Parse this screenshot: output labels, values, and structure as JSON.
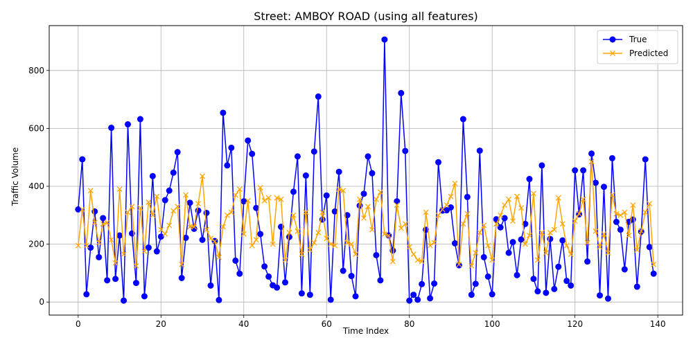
{
  "chart_data": {
    "type": "line",
    "title": "Street: AMBOY ROAD (using all features)",
    "xlabel": "Time Index",
    "ylabel": "Traffic Volume",
    "xlim": [
      -7,
      146
    ],
    "ylim": [
      -45,
      955
    ],
    "xticks": [
      0,
      20,
      40,
      60,
      80,
      100,
      120,
      140
    ],
    "yticks": [
      0,
      200,
      400,
      600,
      800
    ],
    "grid": true,
    "legend_position": "top-right",
    "x": [
      0,
      1,
      2,
      3,
      4,
      5,
      6,
      7,
      8,
      9,
      10,
      11,
      12,
      13,
      14,
      15,
      16,
      17,
      18,
      19,
      20,
      21,
      22,
      23,
      24,
      25,
      26,
      27,
      28,
      29,
      30,
      31,
      32,
      33,
      34,
      35,
      36,
      37,
      38,
      39,
      40,
      41,
      42,
      43,
      44,
      45,
      46,
      47,
      48,
      49,
      50,
      51,
      52,
      53,
      54,
      55,
      56,
      57,
      58,
      59,
      60,
      61,
      62,
      63,
      64,
      65,
      66,
      67,
      68,
      69,
      70,
      71,
      72,
      73,
      74,
      75,
      76,
      77,
      78,
      79,
      80,
      81,
      82,
      83,
      84,
      85,
      86,
      87,
      88,
      89,
      90,
      91,
      92,
      93,
      94,
      95,
      96,
      97,
      98,
      99,
      100,
      101,
      102,
      103,
      104,
      105,
      106,
      107,
      108,
      109,
      110,
      111,
      112,
      113,
      114,
      115,
      116,
      117,
      118,
      119,
      120,
      121,
      122,
      123,
      124,
      125,
      126,
      127,
      128,
      129,
      130,
      131,
      132,
      133,
      134,
      135,
      136,
      137,
      138,
      139
    ],
    "series": [
      {
        "name": "True",
        "color": "#0000ff",
        "marker": "circle",
        "values": [
          320,
          493,
          27,
          188,
          313,
          155,
          290,
          75,
          602,
          80,
          230,
          5,
          614,
          237,
          66,
          632,
          20,
          188,
          435,
          175,
          226,
          352,
          385,
          447,
          518,
          83,
          222,
          343,
          253,
          316,
          215,
          308,
          57,
          211,
          7,
          654,
          472,
          533,
          143,
          98,
          348,
          558,
          512,
          325,
          235,
          123,
          88,
          58,
          50,
          260,
          68,
          225,
          381,
          503,
          30,
          437,
          25,
          520,
          710,
          285,
          368,
          8,
          313,
          450,
          108,
          300,
          90,
          20,
          333,
          374,
          503,
          445,
          162,
          75,
          907,
          230,
          178,
          348,
          722,
          522,
          5,
          25,
          8,
          62,
          250,
          13,
          64,
          483,
          316,
          317,
          327,
          203,
          127,
          632,
          363,
          25,
          63,
          523,
          155,
          88,
          27,
          286,
          258,
          290,
          170,
          207,
          93,
          216,
          270,
          425,
          80,
          37,
          472,
          32,
          218,
          45,
          122,
          213,
          73,
          57,
          455,
          303,
          455,
          140,
          513,
          412,
          23,
          398,
          12,
          497,
          277,
          250,
          113,
          277,
          285,
          53,
          243,
          493,
          190,
          98
        ]
      },
      {
        "name": "Predicted",
        "color": "#ffa500",
        "marker": "x",
        "values": [
          195,
          320,
          195,
          385,
          275,
          205,
          270,
          275,
          215,
          135,
          390,
          165,
          310,
          330,
          125,
          325,
          175,
          345,
          300,
          365,
          250,
          235,
          265,
          315,
          330,
          130,
          370,
          260,
          260,
          340,
          435,
          250,
          220,
          210,
          155,
          260,
          300,
          310,
          370,
          390,
          235,
          350,
          195,
          215,
          395,
          350,
          360,
          200,
          360,
          355,
          145,
          240,
          300,
          245,
          165,
          310,
          180,
          205,
          240,
          310,
          220,
          200,
          195,
          390,
          385,
          205,
          200,
          165,
          355,
          290,
          330,
          250,
          355,
          380,
          235,
          230,
          140,
          335,
          255,
          270,
          190,
          165,
          145,
          140,
          310,
          195,
          205,
          300,
          320,
          335,
          365,
          410,
          130,
          270,
          305,
          125,
          170,
          240,
          265,
          195,
          145,
          270,
          300,
          335,
          355,
          280,
          365,
          325,
          200,
          230,
          375,
          145,
          240,
          170,
          240,
          250,
          360,
          270,
          195,
          165,
          280,
          305,
          355,
          205,
          485,
          245,
          190,
          235,
          170,
          370,
          305,
          300,
          310,
          230,
          335,
          180,
          245,
          310,
          340,
          130
        ]
      }
    ]
  }
}
